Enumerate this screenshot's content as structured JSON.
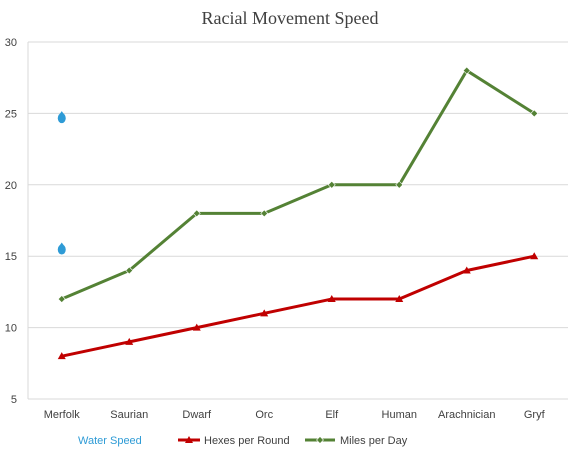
{
  "chart_data": {
    "type": "line",
    "title": "Racial Movement Speed",
    "xlabel": "",
    "ylabel": "",
    "categories": [
      "Merfolk",
      "Saurian",
      "Dwarf",
      "Orc",
      "Elf",
      "Human",
      "Arachnician",
      "Gryf"
    ],
    "ylim": [
      5,
      30
    ],
    "yticks": [
      5,
      10,
      15,
      20,
      25,
      30
    ],
    "grid": true,
    "legend_position": "bottom",
    "series": [
      {
        "name": "Water Speed",
        "kind": "points",
        "color": "#2e9bd6",
        "marker": "water-drop",
        "values": [
          15.5,
          null,
          null,
          null,
          null,
          null,
          null,
          null
        ],
        "extra_points": [
          {
            "category": "Merfolk",
            "value": 24.7
          }
        ]
      },
      {
        "name": "Hexes per Round",
        "kind": "line",
        "color": "#c00000",
        "marker": "triangle",
        "values": [
          8,
          9,
          10,
          11,
          12,
          12,
          14,
          15
        ]
      },
      {
        "name": "Miles per Day",
        "kind": "line",
        "color": "#548235",
        "marker": "diamond",
        "values": [
          12,
          14,
          18,
          18,
          20,
          20,
          28,
          25
        ]
      }
    ]
  }
}
